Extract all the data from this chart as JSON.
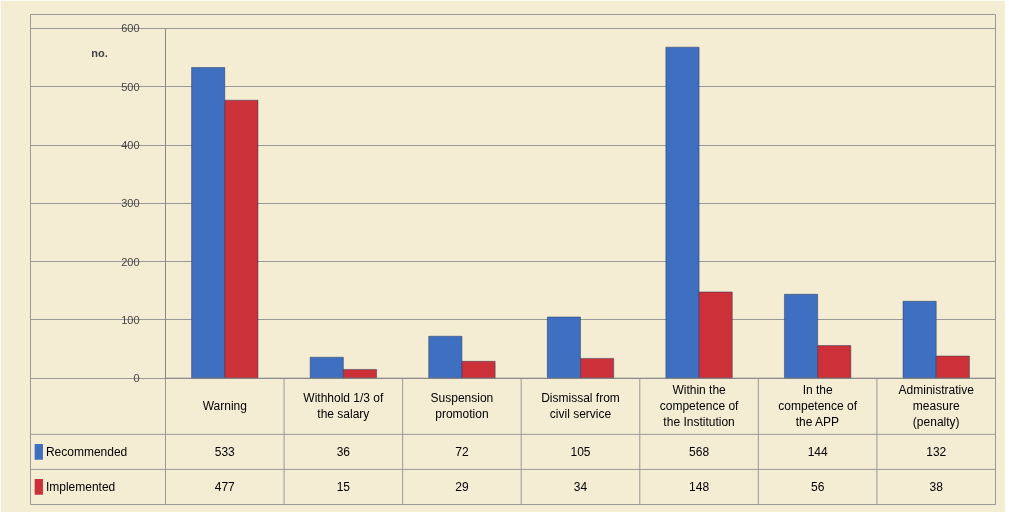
{
  "chart_data": {
    "type": "bar",
    "ylabel": "no.",
    "categories": [
      "Warning",
      "Withhold 1/3 of the salary",
      "Suspension promotion",
      "Dismissal from civil service",
      "Within the competence of the Institution",
      "In the competence of the APP",
      "Administrative measure (penalty)"
    ],
    "series": [
      {
        "name": "Recommended",
        "color": "#3f6fc0",
        "values": [
          533,
          36,
          72,
          105,
          568,
          144,
          132
        ]
      },
      {
        "name": "Implemented",
        "color": "#cc3038",
        "values": [
          477,
          15,
          29,
          34,
          148,
          56,
          38
        ]
      }
    ],
    "ylim": [
      0,
      600
    ],
    "yticks": [
      0,
      100,
      200,
      300,
      400,
      500,
      600
    ],
    "grid": "y",
    "data_labels": true,
    "legend": "bottom"
  }
}
